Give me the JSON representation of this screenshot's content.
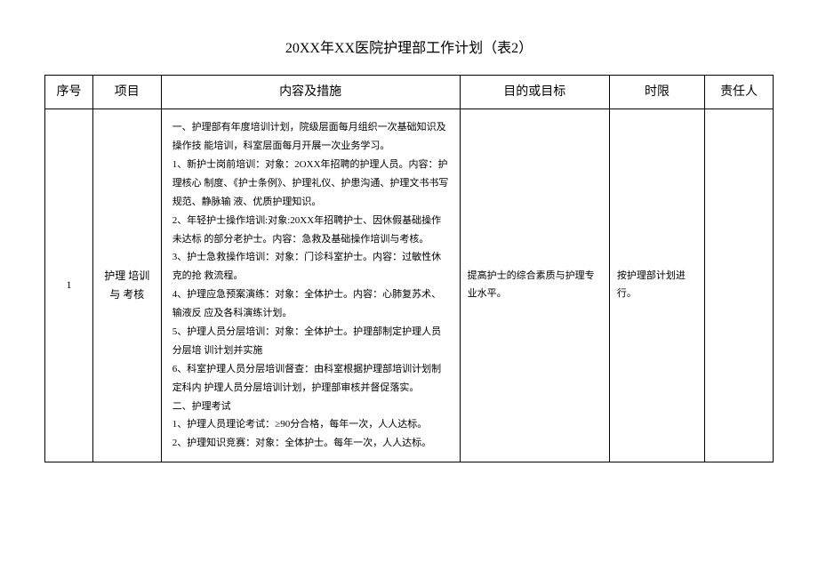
{
  "title": "20XX年XX医院护理部工作计划（表2）",
  "headers": {
    "seq": "序号",
    "project": "项目",
    "content": "内容及措施",
    "goal": "目的或目标",
    "time": "时限",
    "resp": "责任人"
  },
  "row": {
    "seq": "1",
    "project": "护理 培训与 考核",
    "content_lines": [
      "一、护理部有年度培训计划，院级层面每月组织一次基础知识及操作技 能培训，科室层面每月开展一次业务学习。",
      "1、新护士岗前培训：对象：2OXX年招聘的护理人员。内容：护理核心 制度、《护士条例》、护理礼仪、护患沟通、护理文书书写规范、静脉输 液、优质护理知识。",
      "2、年轻护士操作培训:对象:20XX年招聘护士、因休假基础操作未达标 的部分老护士。内容：急救及基础操作培训与考核。",
      "3、护士急救操作培训：对象：门诊科室护士。内容：过敏性休克的抢 救流程。",
      "4、护理应急预案演练：对象：全体护士。内容：心肺复苏术、输液反 应及各科演练计划。",
      "5、护理人员分层培训：对象：全体护士。护理部制定护理人员分层培 训计划并实施",
      "6、科室护理人员分层培训督查：由科室根据护理部培训计划制定科内 护理人员分层培训计划，护理部审核并督促落实。",
      "二、护理考试",
      "1、护理人员理论考试：≥90分合格，每年一次，人人达标。",
      "2、护理知识竞赛：对象：全体护士。每年一次，人人达标。"
    ],
    "goal": "提高护士的综合素质与护理专 业水平。",
    "time": "按护理部计划进行。",
    "resp": ""
  }
}
